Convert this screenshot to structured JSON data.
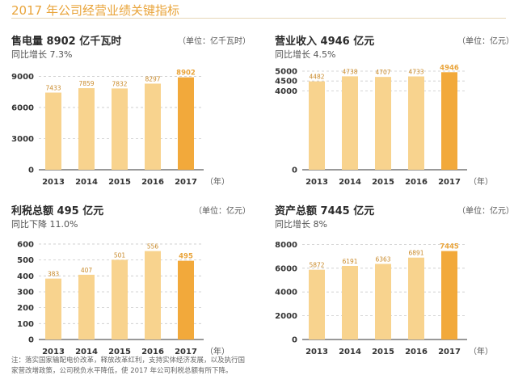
{
  "page": {
    "title": "2017 年公司经营业绩关键指标"
  },
  "panels": [
    {
      "heading": "售电量 8902 亿千瓦时",
      "unit": "（单位：亿千瓦时）",
      "growth": "同比增长 7.3%",
      "year_suffix": "（年）"
    },
    {
      "heading": "营业收入 4946 亿元",
      "unit": "（单位：亿元）",
      "growth": "同比增长 4.5%",
      "year_suffix": "（年）"
    },
    {
      "heading": "利税总额 495 亿元",
      "unit": "（单位：亿元）",
      "growth": "同比下降 11.0%",
      "year_suffix": "（年）"
    },
    {
      "heading": "资产总额 7445 亿元",
      "unit": "（单位：亿元）",
      "growth": "同比增长 8%",
      "year_suffix": "（年）"
    }
  ],
  "footnote": "注：落实国家输配电价改革，释放改革红利，支持实体经济发展，以及执行国家营改增政策，公司税负水平降低，使 2017 年公司利税总额有所下降。",
  "colors": {
    "bar": "#f8d38e",
    "bar_highlight": "#f2a93b",
    "accent": "#e9a43a"
  },
  "chart_data": [
    {
      "type": "bar",
      "title": "售电量 8902 亿千瓦时",
      "categories": [
        "2013",
        "2014",
        "2015",
        "2016",
        "2017"
      ],
      "values": [
        7433,
        7859,
        7832,
        8297,
        8902
      ],
      "yticks": [
        0,
        3000,
        6000,
        9000
      ],
      "ylim": [
        0,
        9500
      ],
      "highlight_index": 4
    },
    {
      "type": "bar",
      "title": "营业收入 4946 亿元",
      "categories": [
        "2013",
        "2014",
        "2015",
        "2016",
        "2017"
      ],
      "values": [
        4482,
        4738,
        4707,
        4733,
        4946
      ],
      "yticks": [
        0,
        4000,
        4500,
        5000
      ],
      "ylim": [
        0,
        5000
      ],
      "highlight_index": 4
    },
    {
      "type": "bar",
      "title": "利税总额 495 亿元",
      "categories": [
        "2013",
        "2014",
        "2015",
        "2016",
        "2017"
      ],
      "values": [
        383,
        407,
        501,
        556,
        495
      ],
      "yticks": [
        0,
        100,
        200,
        300,
        400,
        500,
        600
      ],
      "ylim": [
        0,
        620
      ],
      "highlight_index": 4
    },
    {
      "type": "bar",
      "title": "资产总额 7445 亿元",
      "categories": [
        "2013",
        "2014",
        "2015",
        "2016",
        "2017"
      ],
      "values": [
        5872,
        6191,
        6363,
        6891,
        7445
      ],
      "yticks": [
        0,
        2000,
        4000,
        6000,
        8000
      ],
      "ylim": [
        0,
        8300
      ],
      "highlight_index": 4
    }
  ]
}
